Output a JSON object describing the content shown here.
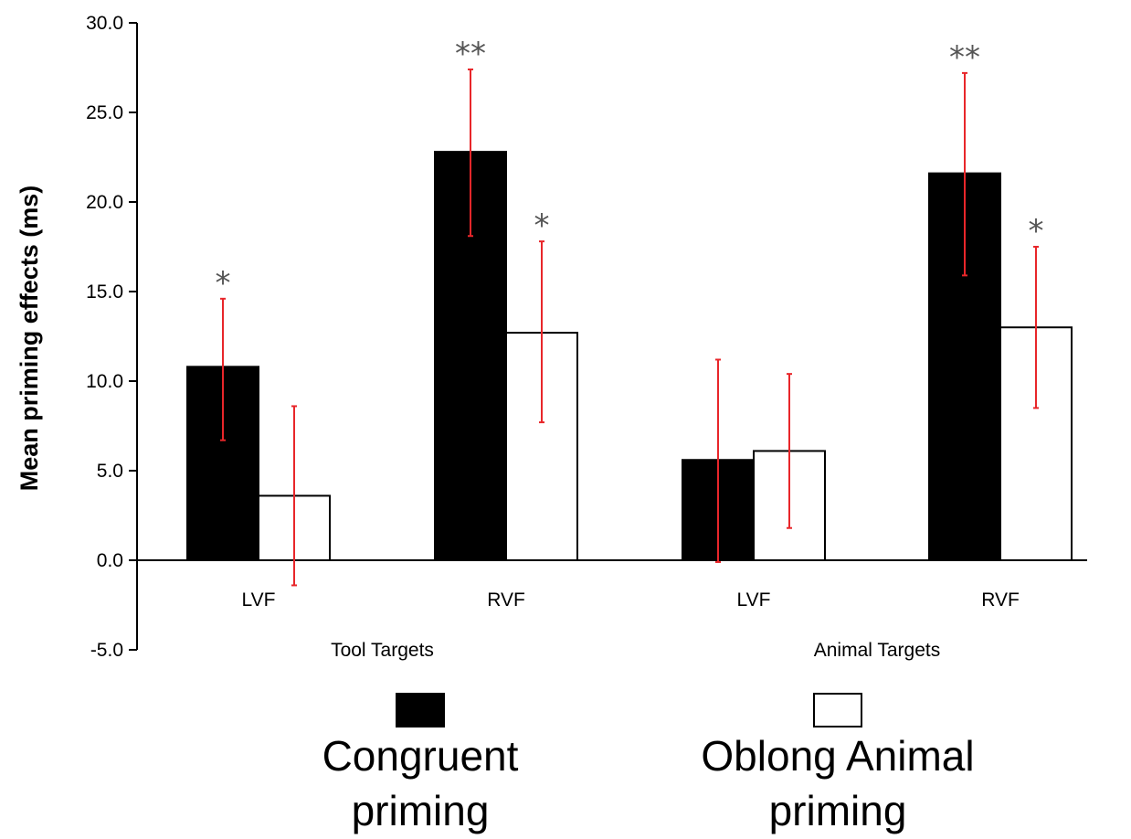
{
  "chart_data": {
    "type": "bar",
    "ylabel": "Mean priming effects (ms)",
    "ylim": [
      -5.0,
      30.0
    ],
    "yticks": [
      "30.0",
      "25.0",
      "20.0",
      "15.0",
      "10.0",
      "5.0",
      "0.0",
      "-5.0"
    ],
    "categories": [
      "LVF",
      "RVF",
      "LVF",
      "RVF"
    ],
    "groups": [
      {
        "label": "Tool Targets",
        "categories": [
          0,
          1
        ]
      },
      {
        "label": "Animal Targets",
        "categories": [
          2,
          3
        ]
      }
    ],
    "series": [
      {
        "name": "Congruent priming",
        "legend_lines": [
          "Congruent",
          "priming"
        ],
        "color": "#000000",
        "values": [
          10.8,
          22.8,
          5.6,
          21.6
        ],
        "err_low": [
          6.7,
          18.1,
          -0.1,
          15.9
        ],
        "err_high": [
          14.6,
          27.4,
          11.2,
          27.2
        ],
        "significance": [
          "*",
          "**",
          "",
          "**"
        ]
      },
      {
        "name": "Oblong Animal priming",
        "legend_lines": [
          "Oblong Animal",
          "priming"
        ],
        "color": "#ffffff",
        "values": [
          3.6,
          12.7,
          6.1,
          13.0
        ],
        "err_low": [
          -1.4,
          7.7,
          1.8,
          8.5
        ],
        "err_high": [
          8.6,
          17.8,
          10.4,
          17.5
        ],
        "significance": [
          "",
          "*",
          "",
          "*"
        ]
      }
    ],
    "error_bar_color": "#e8262a",
    "grid": false,
    "legend_position": "bottom"
  }
}
